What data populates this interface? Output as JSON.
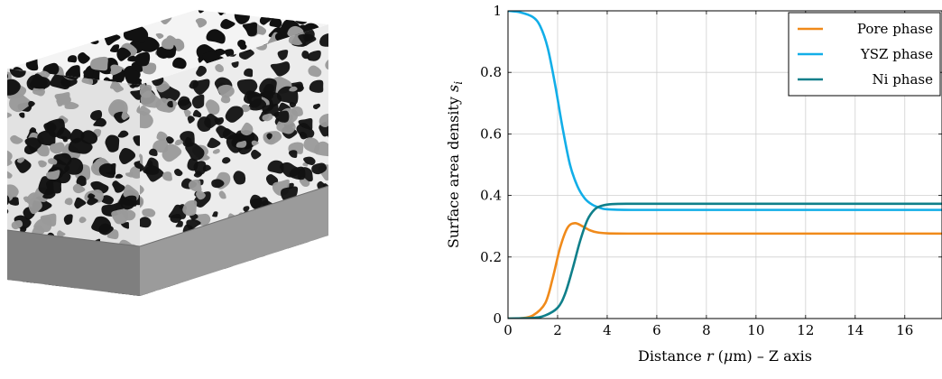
{
  "microstructure_image": {
    "phase_colors": {
      "pore": "#111111",
      "ysz": "#f4f4f4",
      "ni": "#9a9a9a",
      "substrate_side": "#7f7f7f",
      "substrate_front": "#9b9b9b"
    }
  },
  "chart_data": {
    "type": "line",
    "xlabel": "Distance r (μm) – Z axis",
    "ylabel": "Surface area density s_i",
    "xlim": [
      0,
      17.5
    ],
    "ylim": [
      0,
      1
    ],
    "x_ticks": [
      "0",
      "2",
      "4",
      "6",
      "8",
      "10",
      "12",
      "14",
      "16"
    ],
    "y_ticks": [
      "0",
      "0.2",
      "0.4",
      "0.6",
      "0.8",
      "1"
    ],
    "grid": true,
    "legend_position": "top-right",
    "series": [
      {
        "name": "Pore phase",
        "color": "#f08a1a",
        "x": [
          0,
          0.5,
          1,
          1.5,
          1.8,
          2.1,
          2.4,
          2.7,
          3.0,
          3.3,
          3.6,
          4,
          5,
          8,
          12,
          17.5
        ],
        "y": [
          0,
          0.001,
          0.01,
          0.05,
          0.13,
          0.23,
          0.295,
          0.31,
          0.3,
          0.287,
          0.28,
          0.277,
          0.276,
          0.276,
          0.276,
          0.276
        ]
      },
      {
        "name": "YSZ phase",
        "color": "#12aee8",
        "x": [
          0,
          0.5,
          1,
          1.3,
          1.6,
          1.9,
          2.2,
          2.5,
          2.8,
          3.1,
          3.4,
          3.7,
          4,
          5,
          8,
          12,
          17.5
        ],
        "y": [
          1,
          0.995,
          0.98,
          0.95,
          0.88,
          0.76,
          0.62,
          0.5,
          0.43,
          0.39,
          0.37,
          0.36,
          0.355,
          0.353,
          0.353,
          0.353,
          0.353
        ]
      },
      {
        "name": "Ni phase",
        "color": "#0f7f8a",
        "x": [
          0,
          1,
          1.5,
          2,
          2.3,
          2.6,
          2.9,
          3.2,
          3.5,
          3.8,
          4.2,
          5,
          8,
          12,
          17.5
        ],
        "y": [
          0,
          0.002,
          0.01,
          0.035,
          0.08,
          0.16,
          0.25,
          0.32,
          0.355,
          0.367,
          0.372,
          0.373,
          0.373,
          0.373,
          0.373
        ]
      }
    ]
  }
}
